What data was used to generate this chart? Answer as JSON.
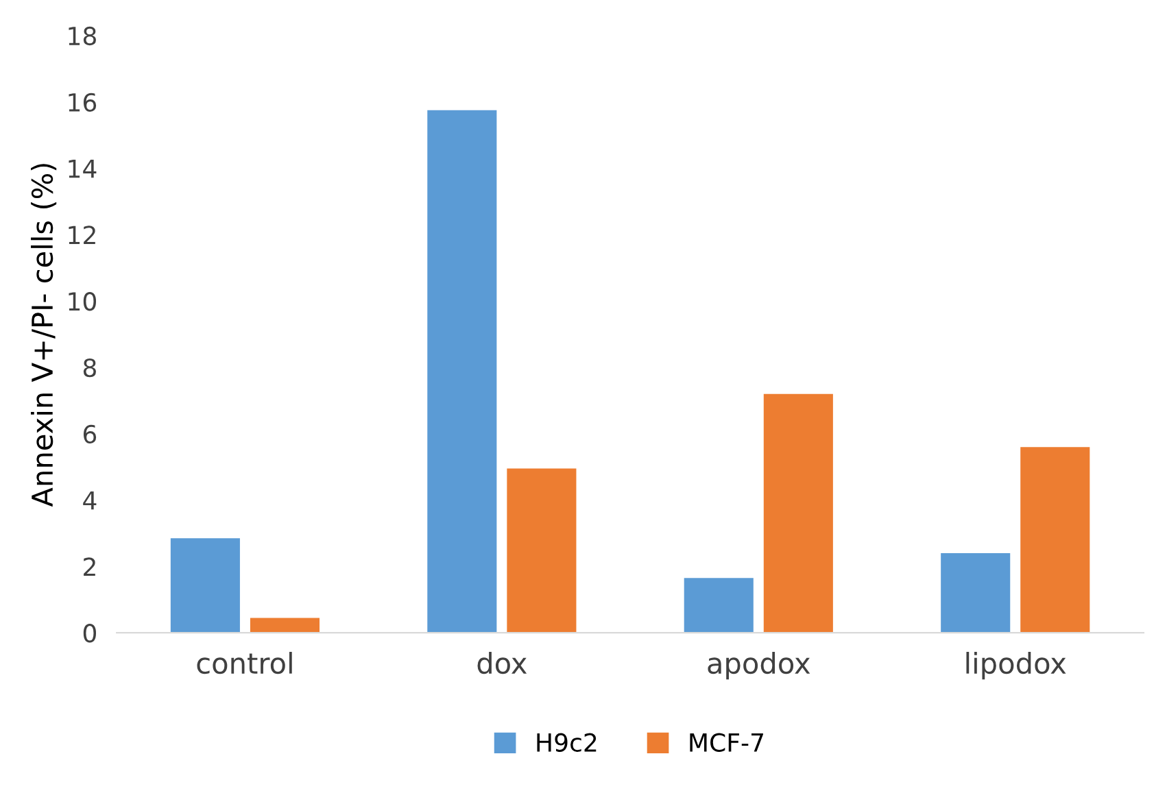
{
  "chart_data": {
    "type": "bar",
    "ylabel": "Annexin V+/PI- cells (%)",
    "categories": [
      "control",
      "dox",
      "apodox",
      "lipodox"
    ],
    "series": [
      {
        "name": "H9c2",
        "color": "#5b9bd5",
        "values": [
          2.85,
          15.75,
          1.65,
          2.4
        ]
      },
      {
        "name": "MCF-7",
        "color": "#ed7d31",
        "values": [
          0.45,
          4.95,
          7.2,
          5.6
        ]
      }
    ],
    "ylim": [
      0,
      18
    ],
    "yticks": [
      0,
      2,
      4,
      6,
      8,
      10,
      12,
      14,
      16,
      18
    ],
    "grid": false,
    "legend": "bottom"
  }
}
